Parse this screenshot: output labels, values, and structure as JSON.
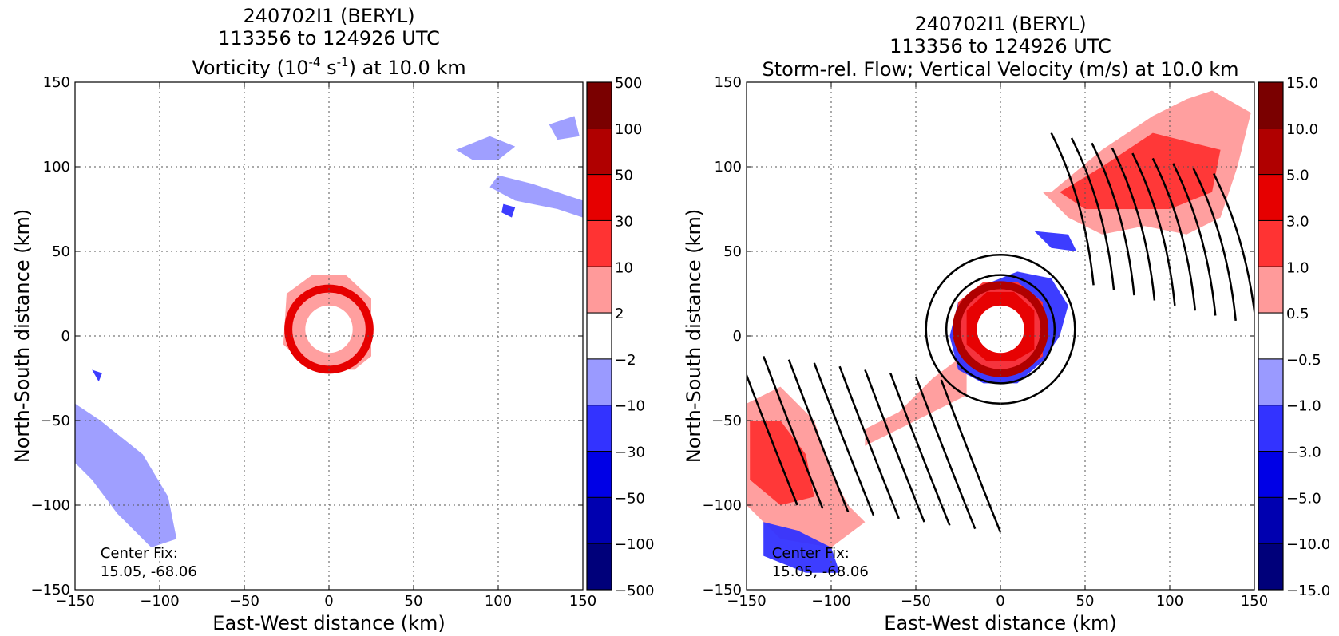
{
  "chart_data": [
    {
      "type": "heatmap",
      "title_lines": [
        "240702I1 (BERYL)",
        "113356 to 124926 UTC"
      ],
      "title_var": {
        "prefix": "Vorticity (10",
        "exp1": "-4",
        "mid": " s",
        "exp2": "-1",
        "suffix": ") at 10.0 km"
      },
      "xlabel": "East-West distance (km)",
      "ylabel": "North-South distance (km)",
      "xlim": [
        -150,
        150
      ],
      "ylim": [
        -150,
        150
      ],
      "xticks": [
        "−150",
        "−100",
        "−50",
        "0",
        "50",
        "100",
        "150"
      ],
      "yticks": [
        "−150",
        "−100",
        "−50",
        "0",
        "50",
        "100",
        "150"
      ],
      "grid": true,
      "colorbar": {
        "labels": [
          "500",
          "100",
          "50",
          "30",
          "10",
          "2",
          "−2",
          "−10",
          "−30",
          "−50",
          "−100",
          "−500"
        ],
        "colors": [
          "#7a0000",
          "#b00000",
          "#e60000",
          "#ff3333",
          "#ff9a9a",
          "#ffffff",
          "#9a9aff",
          "#3333ff",
          "#0000e6",
          "#0000b0",
          "#00007a"
        ]
      },
      "annotation": [
        "Center Fix:",
        "15.05, -68.06"
      ],
      "eye": {
        "x": 0,
        "y": 4,
        "r_inner": 14,
        "r_outer": 24
      },
      "regions": [
        {
          "level": 2,
          "pts": [
            [
              -25,
              20
            ],
            [
              0,
              38
            ],
            [
              20,
              38
            ],
            [
              45,
              30
            ],
            [
              60,
              50
            ],
            [
              75,
              70
            ],
            [
              100,
              95
            ],
            [
              125,
              110
            ],
            [
              150,
              120
            ],
            [
              150,
              70
            ],
            [
              130,
              60
            ],
            [
              100,
              40
            ],
            [
              75,
              20
            ],
            [
              50,
              0
            ],
            [
              40,
              -30
            ],
            [
              20,
              -50
            ],
            [
              0,
              -48
            ],
            [
              -30,
              -40
            ],
            [
              -60,
              -30
            ],
            [
              -100,
              -30
            ],
            [
              -95,
              -45
            ],
            [
              -70,
              -60
            ],
            [
              -40,
              -55
            ],
            [
              -20,
              -35
            ],
            [
              -30,
              -5
            ],
            [
              -40,
              10
            ]
          ]
        },
        {
          "level": 2,
          "pts": [
            [
              -150,
              -30
            ],
            [
              -120,
              -40
            ],
            [
              -100,
              -60
            ],
            [
              -90,
              -85
            ],
            [
              -80,
              -100
            ],
            [
              -75,
              -110
            ],
            [
              -100,
              -130
            ],
            [
              -120,
              -115
            ],
            [
              -140,
              -95
            ],
            [
              -150,
              -80
            ]
          ]
        },
        {
          "level": 2,
          "pts": [
            [
              80,
              140
            ],
            [
              100,
              150
            ],
            [
              130,
              148
            ],
            [
              140,
              130
            ],
            [
              120,
              120
            ],
            [
              95,
              125
            ]
          ]
        },
        {
          "level": -2,
          "pts": [
            [
              -150,
              -40
            ],
            [
              -135,
              -50
            ],
            [
              -110,
              -70
            ],
            [
              -95,
              -95
            ],
            [
              -90,
              -120
            ],
            [
              -105,
              -125
            ],
            [
              -125,
              -105
            ],
            [
              -140,
              -85
            ],
            [
              -150,
              -75
            ]
          ]
        },
        {
          "level": -2,
          "pts": [
            [
              100,
              95
            ],
            [
              120,
              90
            ],
            [
              150,
              80
            ],
            [
              150,
              70
            ],
            [
              135,
              75
            ],
            [
              110,
              80
            ],
            [
              95,
              88
            ]
          ]
        },
        {
          "level": -2,
          "pts": [
            [
              75,
              110
            ],
            [
              95,
              118
            ],
            [
              110,
              112
            ],
            [
              100,
              104
            ],
            [
              85,
              104
            ]
          ]
        },
        {
          "level": -2,
          "pts": [
            [
              130,
              125
            ],
            [
              145,
              130
            ],
            [
              148,
              118
            ],
            [
              135,
              116
            ]
          ]
        },
        {
          "level": 10,
          "pts": [
            [
              -25,
              25
            ],
            [
              -10,
              36
            ],
            [
              10,
              36
            ],
            [
              25,
              22
            ],
            [
              25,
              -12
            ],
            [
              15,
              -20
            ],
            [
              0,
              -20
            ],
            [
              -15,
              -16
            ],
            [
              -27,
              -5
            ]
          ]
        },
        {
          "level": -10,
          "pts": [
            [
              103,
              78
            ],
            [
              110,
              76
            ],
            [
              108,
              70
            ],
            [
              102,
              73
            ]
          ]
        },
        {
          "level": -10,
          "pts": [
            [
              -140,
              -20
            ],
            [
              -134,
              -22
            ],
            [
              -136,
              -27
            ]
          ]
        }
      ]
    },
    {
      "type": "heatmap",
      "title_lines": [
        "240702I1 (BERYL)",
        "113356 to 124926 UTC",
        "Storm-rel. Flow; Vertical Velocity (m/s) at 10.0 km"
      ],
      "xlabel": "East-West distance (km)",
      "ylabel": "North-South distance (km)",
      "xlim": [
        -150,
        150
      ],
      "ylim": [
        -150,
        150
      ],
      "xticks": [
        "−150",
        "−100",
        "−50",
        "0",
        "50",
        "100",
        "150"
      ],
      "yticks": [
        "−150",
        "−100",
        "−50",
        "0",
        "50",
        "100",
        "150"
      ],
      "grid": true,
      "colorbar": {
        "labels": [
          "15.0",
          "10.0",
          "5.0",
          "3.0",
          "1.0",
          "0.5",
          "−0.5",
          "−1.0",
          "−3.0",
          "−5.0",
          "−10.0",
          "−15.0"
        ],
        "colors": [
          "#7a0000",
          "#b00000",
          "#e60000",
          "#ff3333",
          "#ff9a9a",
          "#ffffff",
          "#9a9aff",
          "#3333ff",
          "#0000e6",
          "#0000b0",
          "#00007a"
        ]
      },
      "annotation": [
        "Center Fix:",
        "15.05, -68.06"
      ],
      "eye": {
        "x": 0,
        "y": 4,
        "r_inner": 14,
        "r_outer": 26
      },
      "regions": [
        {
          "level": 1,
          "pts": [
            [
              30,
              85
            ],
            [
              60,
              110
            ],
            [
              90,
              130
            ],
            [
              110,
              140
            ],
            [
              125,
              145
            ],
            [
              148,
              132
            ],
            [
              140,
              100
            ],
            [
              130,
              70
            ],
            [
              110,
              60
            ],
            [
              85,
              65
            ],
            [
              60,
              60
            ],
            [
              40,
              70
            ],
            [
              25,
              85
            ]
          ]
        },
        {
          "level": 1,
          "pts": [
            [
              -150,
              -40
            ],
            [
              -130,
              -30
            ],
            [
              -110,
              -50
            ],
            [
              -100,
              -80
            ],
            [
              -90,
              -100
            ],
            [
              -80,
              -110
            ],
            [
              -100,
              -125
            ],
            [
              -130,
              -120
            ],
            [
              -150,
              -100
            ]
          ]
        },
        {
          "level": 1,
          "pts": [
            [
              -80,
              -55
            ],
            [
              -60,
              -45
            ],
            [
              -40,
              -25
            ],
            [
              -20,
              -10
            ],
            [
              -20,
              -35
            ],
            [
              -40,
              -45
            ],
            [
              -60,
              -55
            ],
            [
              -80,
              -65
            ]
          ]
        },
        {
          "level": 0.5,
          "pts": [
            [
              -50,
              -15
            ],
            [
              -20,
              10
            ],
            [
              -30,
              -15
            ],
            [
              -60,
              -30
            ]
          ]
        },
        {
          "level": 3,
          "pts": [
            [
              35,
              85
            ],
            [
              60,
              100
            ],
            [
              90,
              120
            ],
            [
              110,
              115
            ],
            [
              130,
              110
            ],
            [
              125,
              85
            ],
            [
              100,
              75
            ],
            [
              75,
              75
            ],
            [
              50,
              75
            ]
          ]
        },
        {
          "level": 3,
          "pts": [
            [
              -148,
              -50
            ],
            [
              -130,
              -50
            ],
            [
              -115,
              -70
            ],
            [
              -110,
              -95
            ],
            [
              -130,
              -100
            ],
            [
              -148,
              -85
            ]
          ]
        },
        {
          "level": -1,
          "pts": [
            [
              -10,
              30
            ],
            [
              10,
              38
            ],
            [
              30,
              34
            ],
            [
              40,
              18
            ],
            [
              35,
              0
            ],
            [
              25,
              -15
            ],
            [
              10,
              -28
            ],
            [
              -10,
              -28
            ],
            [
              -25,
              -20
            ],
            [
              -30,
              0
            ],
            [
              -25,
              20
            ]
          ]
        },
        {
          "level": -1,
          "pts": [
            [
              -140,
              -110
            ],
            [
              -120,
              -115
            ],
            [
              -100,
              -125
            ],
            [
              -95,
              -140
            ],
            [
              -115,
              -140
            ],
            [
              -140,
              -130
            ]
          ]
        },
        {
          "level": -1,
          "pts": [
            [
              20,
              62
            ],
            [
              40,
              60
            ],
            [
              45,
              50
            ],
            [
              30,
              52
            ]
          ]
        },
        {
          "level": 3,
          "pts": [
            [
              -25,
              20
            ],
            [
              -10,
              32
            ],
            [
              10,
              32
            ],
            [
              25,
              20
            ],
            [
              25,
              -12
            ],
            [
              12,
              -22
            ],
            [
              -5,
              -22
            ],
            [
              -18,
              -15
            ],
            [
              -27,
              0
            ]
          ]
        },
        {
          "level": 5,
          "pts": [
            [
              -20,
              15
            ],
            [
              -8,
              26
            ],
            [
              8,
              26
            ],
            [
              20,
              15
            ],
            [
              20,
              -8
            ],
            [
              8,
              -15
            ],
            [
              -8,
              -15
            ],
            [
              -20,
              -5
            ]
          ]
        }
      ]
    }
  ]
}
